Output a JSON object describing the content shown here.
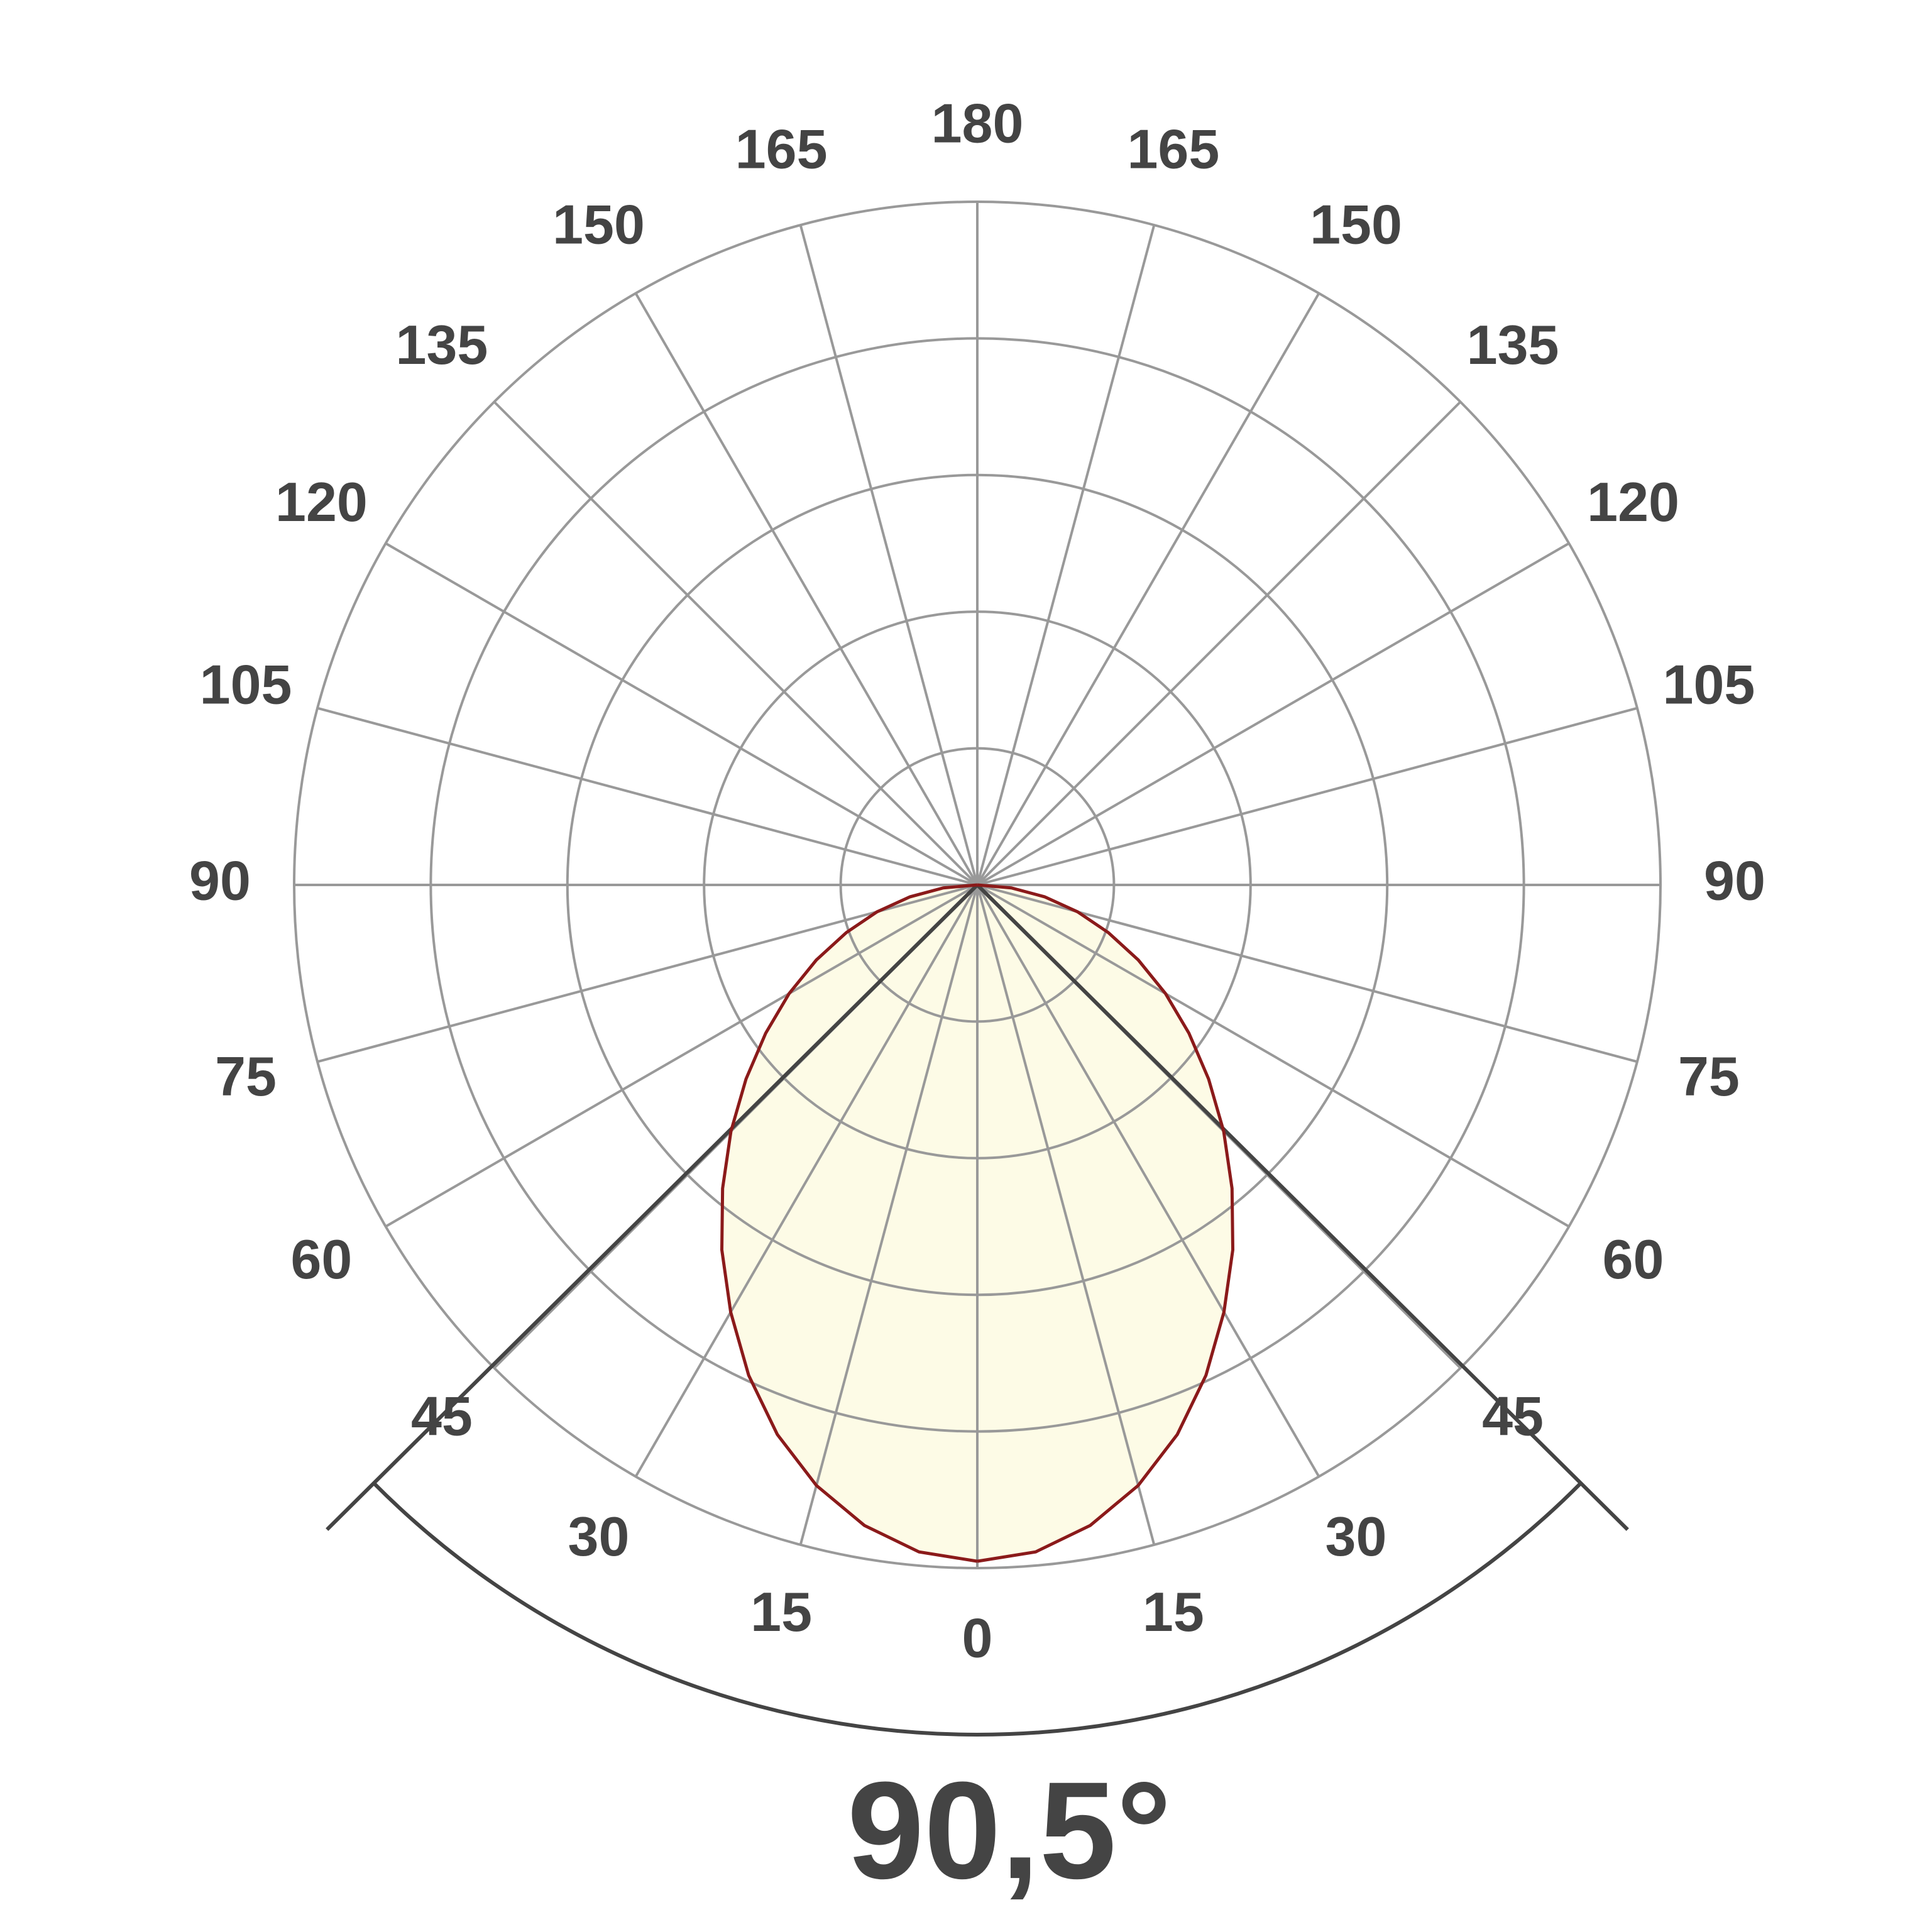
{
  "chart_data": {
    "type": "polar",
    "angles": [
      0,
      5,
      10,
      15,
      20,
      25,
      30,
      35,
      40,
      45,
      50,
      55,
      60,
      65,
      70,
      75,
      80,
      85,
      90
    ],
    "series": [
      {
        "color": "#8b1a1a",
        "fill": "#fdfbe6",
        "values": [
          4.95,
          4.9,
          4.76,
          4.55,
          4.28,
          3.96,
          3.61,
          3.26,
          2.9,
          2.55,
          2.21,
          1.89,
          1.59,
          1.3,
          1.02,
          0.76,
          0.5,
          0.25,
          0
        ]
      }
    ],
    "rlim": [
      0,
      5
    ],
    "rgrid": [
      1,
      2,
      3,
      4,
      5
    ],
    "angle_ticks": [
      0,
      15,
      30,
      45,
      60,
      75,
      90,
      105,
      120,
      135,
      150,
      165,
      180
    ],
    "beam_angle": {
      "value": 90.5,
      "label": "90,5°"
    },
    "grid": true
  }
}
